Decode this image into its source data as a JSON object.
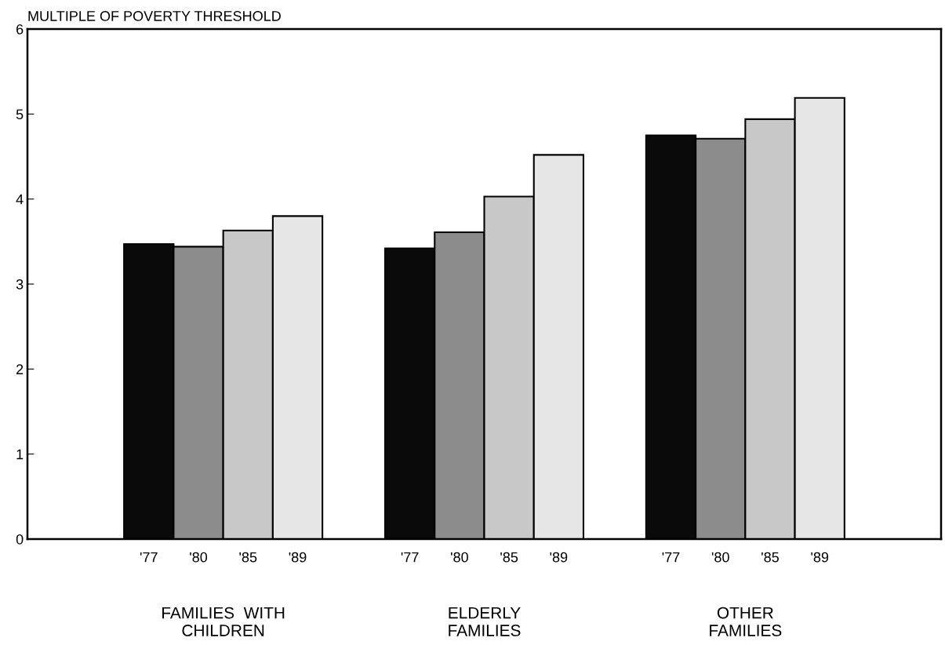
{
  "chart_data": {
    "type": "bar",
    "ylabel": "MULTIPLE OF POVERTY THRESHOLD",
    "categories": [
      "FAMILIES  WITH\nCHILDREN",
      "ELDERLY\nFAMILIES",
      "OTHER\nFAMILIES"
    ],
    "series": [
      {
        "name": "'77",
        "color": "#0a0a0a",
        "values": [
          3.47,
          3.42,
          4.75
        ]
      },
      {
        "name": "'80",
        "color": "#8c8c8c",
        "values": [
          3.44,
          3.61,
          4.71
        ]
      },
      {
        "name": "'85",
        "color": "#c8c8c8",
        "values": [
          3.63,
          4.03,
          4.94
        ]
      },
      {
        "name": "'89",
        "color": "#e6e6e6",
        "values": [
          3.8,
          4.52,
          5.19
        ]
      }
    ],
    "ylim": [
      0,
      6
    ],
    "yticks": [
      0,
      1,
      2,
      3,
      4,
      5,
      6
    ],
    "grid": false,
    "legend": false
  }
}
